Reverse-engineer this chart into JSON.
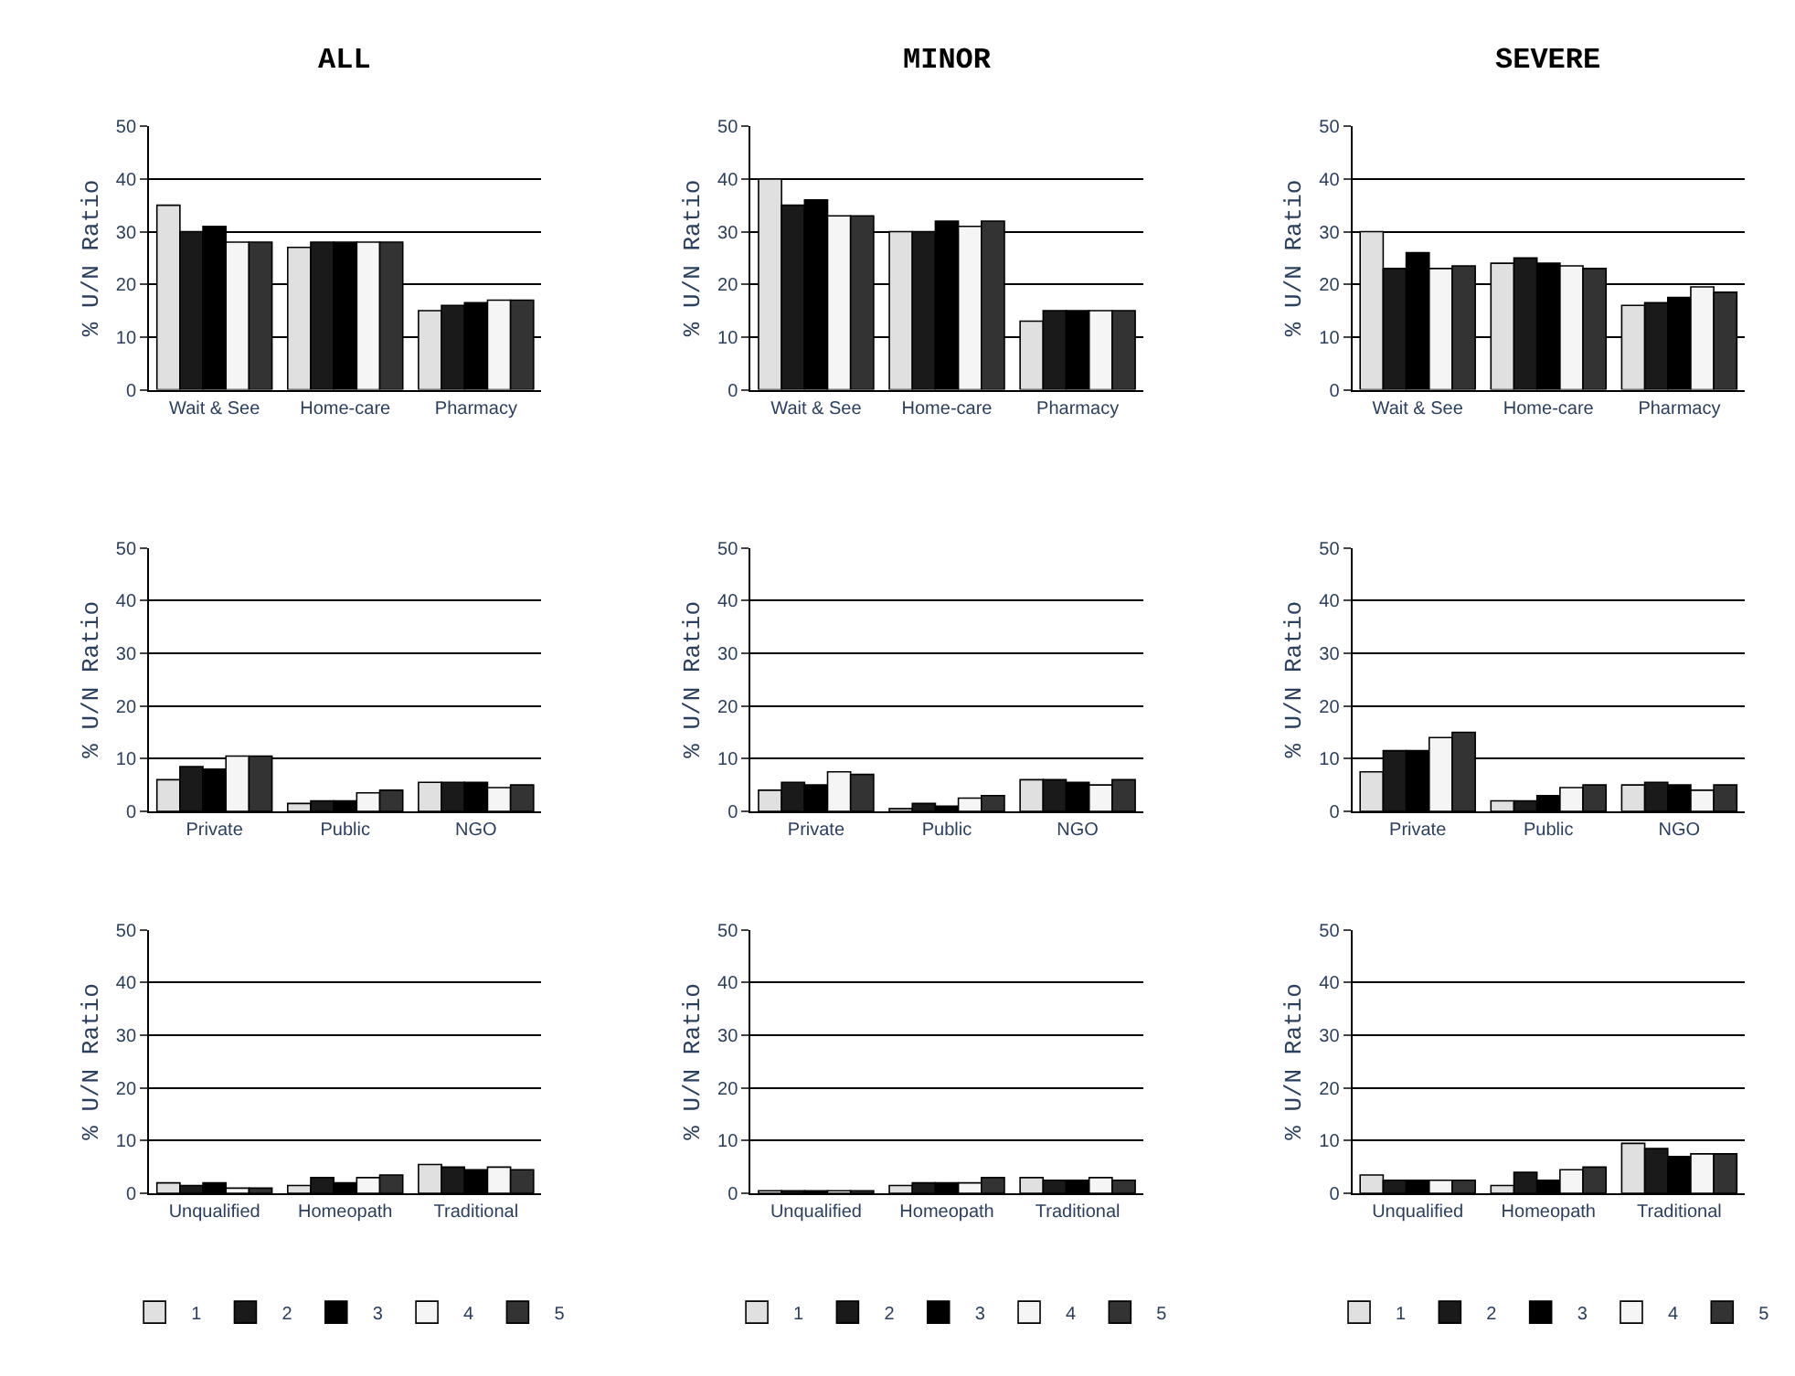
{
  "chart_data": [
    {
      "type": "bar",
      "title": "ALL",
      "ylabel": "% U/N Ratio",
      "categories": [
        "Wait & See",
        "Home-care",
        "Pharmacy"
      ],
      "ylim": [
        0,
        50
      ],
      "yticks": [
        0,
        10,
        20,
        30,
        40,
        50
      ],
      "grid": "y",
      "series": [
        {
          "color": "#e0e0e0",
          "values": [
            35,
            27,
            15
          ]
        },
        {
          "color": "#1a1a1a",
          "values": [
            30,
            28,
            16
          ]
        },
        {
          "color": "#000000",
          "values": [
            31,
            28,
            16.5
          ]
        },
        {
          "color": "#f5f5f5",
          "values": [
            28,
            28,
            17
          ]
        },
        {
          "color": "#333333",
          "values": [
            28,
            28,
            17
          ]
        }
      ]
    },
    {
      "type": "bar",
      "title": "MINOR",
      "ylabel": "% U/N Ratio",
      "categories": [
        "Wait & See",
        "Home-care",
        "Pharmacy"
      ],
      "ylim": [
        0,
        50
      ],
      "yticks": [
        0,
        10,
        20,
        30,
        40,
        50
      ],
      "grid": "y",
      "series": [
        {
          "color": "#e0e0e0",
          "values": [
            40,
            30,
            13
          ]
        },
        {
          "color": "#1a1a1a",
          "values": [
            35,
            30,
            15
          ]
        },
        {
          "color": "#000000",
          "values": [
            36,
            32,
            15
          ]
        },
        {
          "color": "#f5f5f5",
          "values": [
            33,
            31,
            15
          ]
        },
        {
          "color": "#333333",
          "values": [
            33,
            32,
            15
          ]
        }
      ]
    },
    {
      "type": "bar",
      "title": "SEVERE",
      "ylabel": "% U/N Ratio",
      "categories": [
        "Wait & See",
        "Home-care",
        "Pharmacy"
      ],
      "ylim": [
        0,
        50
      ],
      "yticks": [
        0,
        10,
        20,
        30,
        40,
        50
      ],
      "grid": "y",
      "series": [
        {
          "color": "#e0e0e0",
          "values": [
            30,
            24,
            16
          ]
        },
        {
          "color": "#1a1a1a",
          "values": [
            23,
            25,
            16.5
          ]
        },
        {
          "color": "#000000",
          "values": [
            26,
            24,
            17.5
          ]
        },
        {
          "color": "#f5f5f5",
          "values": [
            23,
            23.5,
            19.5
          ]
        },
        {
          "color": "#333333",
          "values": [
            23.5,
            23,
            18.5
          ]
        }
      ]
    },
    {
      "type": "bar",
      "ylabel": "% U/N Ratio",
      "categories": [
        "Private",
        "Public",
        "NGO"
      ],
      "ylim": [
        0,
        50
      ],
      "yticks": [
        0,
        10,
        20,
        30,
        40,
        50
      ],
      "grid": "y",
      "series": [
        {
          "color": "#e0e0e0",
          "values": [
            6,
            1.5,
            5.5
          ]
        },
        {
          "color": "#1a1a1a",
          "values": [
            8.5,
            2,
            5.5
          ]
        },
        {
          "color": "#000000",
          "values": [
            8,
            2,
            5.5
          ]
        },
        {
          "color": "#f5f5f5",
          "values": [
            10.5,
            3.5,
            4.5
          ]
        },
        {
          "color": "#333333",
          "values": [
            10.5,
            4,
            5
          ]
        }
      ]
    },
    {
      "type": "bar",
      "ylabel": "% U/N Ratio",
      "categories": [
        "Private",
        "Public",
        "NGO"
      ],
      "ylim": [
        0,
        50
      ],
      "yticks": [
        0,
        10,
        20,
        30,
        40,
        50
      ],
      "grid": "y",
      "series": [
        {
          "color": "#e0e0e0",
          "values": [
            4,
            0.5,
            6
          ]
        },
        {
          "color": "#1a1a1a",
          "values": [
            5.5,
            1.5,
            6
          ]
        },
        {
          "color": "#000000",
          "values": [
            5,
            1,
            5.5
          ]
        },
        {
          "color": "#f5f5f5",
          "values": [
            7.5,
            2.5,
            5
          ]
        },
        {
          "color": "#333333",
          "values": [
            7,
            3,
            6
          ]
        }
      ]
    },
    {
      "type": "bar",
      "ylabel": "% U/N Ratio",
      "categories": [
        "Private",
        "Public",
        "NGO"
      ],
      "ylim": [
        0,
        50
      ],
      "yticks": [
        0,
        10,
        20,
        30,
        40,
        50
      ],
      "grid": "y",
      "series": [
        {
          "color": "#e0e0e0",
          "values": [
            7.5,
            2,
            5
          ]
        },
        {
          "color": "#1a1a1a",
          "values": [
            11.5,
            2,
            5.5
          ]
        },
        {
          "color": "#000000",
          "values": [
            11.5,
            3,
            5
          ]
        },
        {
          "color": "#f5f5f5",
          "values": [
            14,
            4.5,
            4
          ]
        },
        {
          "color": "#333333",
          "values": [
            15,
            5,
            5
          ]
        }
      ]
    },
    {
      "type": "bar",
      "ylabel": "% U/N Ratio",
      "categories": [
        "Unqualified",
        "Homeopath",
        "Traditional"
      ],
      "ylim": [
        0,
        50
      ],
      "yticks": [
        0,
        10,
        20,
        30,
        40,
        50
      ],
      "grid": "y",
      "legend": "bottom",
      "series": [
        {
          "name": "1",
          "color": "#e0e0e0",
          "values": [
            2,
            1.5,
            5.5
          ]
        },
        {
          "name": "2",
          "color": "#1a1a1a",
          "values": [
            1.5,
            3,
            5
          ]
        },
        {
          "name": "3",
          "color": "#000000",
          "values": [
            2,
            2,
            4.5
          ]
        },
        {
          "name": "4",
          "color": "#f5f5f5",
          "values": [
            1,
            3,
            5
          ]
        },
        {
          "name": "5",
          "color": "#333333",
          "values": [
            1,
            3.5,
            4.5
          ]
        }
      ]
    },
    {
      "type": "bar",
      "ylabel": "% U/N Ratio",
      "categories": [
        "Unqualified",
        "Homeopath",
        "Traditional"
      ],
      "ylim": [
        0,
        50
      ],
      "yticks": [
        0,
        10,
        20,
        30,
        40,
        50
      ],
      "grid": "y",
      "legend": "bottom",
      "series": [
        {
          "name": "1",
          "color": "#e0e0e0",
          "values": [
            0.5,
            1.5,
            3
          ]
        },
        {
          "name": "2",
          "color": "#1a1a1a",
          "values": [
            0.5,
            2,
            2.5
          ]
        },
        {
          "name": "3",
          "color": "#000000",
          "values": [
            0.5,
            2,
            2.5
          ]
        },
        {
          "name": "4",
          "color": "#f5f5f5",
          "values": [
            0.5,
            2,
            3
          ]
        },
        {
          "name": "5",
          "color": "#333333",
          "values": [
            0.5,
            3,
            2.5
          ]
        }
      ]
    },
    {
      "type": "bar",
      "ylabel": "% U/N Ratio",
      "categories": [
        "Unqualified",
        "Homeopath",
        "Traditional"
      ],
      "ylim": [
        0,
        50
      ],
      "yticks": [
        0,
        10,
        20,
        30,
        40,
        50
      ],
      "grid": "y",
      "legend": "bottom",
      "series": [
        {
          "name": "1",
          "color": "#e0e0e0",
          "values": [
            3.5,
            1.5,
            9.5
          ]
        },
        {
          "name": "2",
          "color": "#1a1a1a",
          "values": [
            2.5,
            4,
            8.5
          ]
        },
        {
          "name": "3",
          "color": "#000000",
          "values": [
            2.5,
            2.5,
            7
          ]
        },
        {
          "name": "4",
          "color": "#f5f5f5",
          "values": [
            2.5,
            4.5,
            7.5
          ]
        },
        {
          "name": "5",
          "color": "#333333",
          "values": [
            2.5,
            5,
            7.5
          ]
        }
      ]
    }
  ]
}
